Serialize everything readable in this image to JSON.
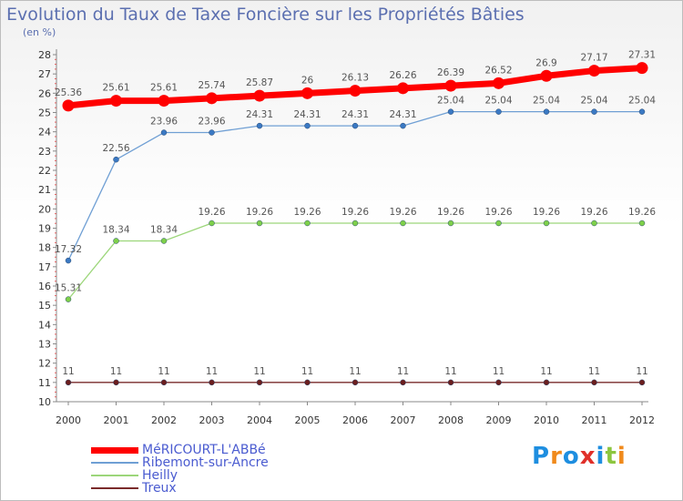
{
  "title": "Evolution du Taux de Taxe Foncière sur les Propriétés Bâties",
  "subtitle": "(en %)",
  "logo": {
    "text": "Proxiti",
    "letters": [
      "P",
      "r",
      "o",
      "x",
      "i",
      "t",
      "i"
    ],
    "colors": [
      "#1e8ee0",
      "#f08a1c",
      "#1e8ee0",
      "#e0302a",
      "#1e8ee0",
      "#8cc63f",
      "#f08a1c"
    ]
  },
  "chart_data": {
    "type": "line",
    "title": "Evolution du Taux de Taxe Foncière sur les Propriétés Bâties",
    "ylabel": "(en %)",
    "xlabel": "",
    "ylim": [
      10,
      28
    ],
    "yticks": [
      "10",
      "11",
      "12",
      "13",
      "14",
      "15",
      "16",
      "17",
      "18",
      "19",
      "20",
      "21",
      "22",
      "23",
      "24",
      "25",
      "26",
      "27",
      "28"
    ],
    "x": [
      "2000",
      "2001",
      "2002",
      "2003",
      "2004",
      "2005",
      "2006",
      "2007",
      "2008",
      "2009",
      "2010",
      "2011",
      "2012"
    ],
    "grid": false,
    "legend": "bottom-left",
    "series": [
      {
        "name": "MéRICOURT-L'ABBé",
        "color": "#ff0000",
        "width": 7,
        "values": [
          25.36,
          25.61,
          25.61,
          25.74,
          25.87,
          26,
          26.13,
          26.26,
          26.39,
          26.52,
          26.9,
          27.17,
          27.31
        ],
        "labels": [
          "25.36",
          "25.61",
          "25.61",
          "25.74",
          "25.87",
          "26",
          "26.13",
          "26.26",
          "26.39",
          "26.52",
          "26.9",
          "27.17",
          "27.31"
        ]
      },
      {
        "name": "Ribemont-sur-Ancre",
        "color": "#6f9fd4",
        "point": "#3b79c3",
        "width": 1.3,
        "values": [
          17.32,
          22.56,
          23.96,
          23.96,
          24.31,
          24.31,
          24.31,
          24.31,
          25.04,
          25.04,
          25.04,
          25.04,
          25.04
        ],
        "labels": [
          "17.32",
          "22.56",
          "23.96",
          "23.96",
          "24.31",
          "24.31",
          "24.31",
          "24.31",
          "25.04",
          "25.04",
          "25.04",
          "25.04",
          "25.04"
        ]
      },
      {
        "name": "Heilly",
        "color": "#9cd67a",
        "point": "#7ed04a",
        "width": 1.3,
        "values": [
          15.31,
          18.34,
          18.34,
          19.26,
          19.26,
          19.26,
          19.26,
          19.26,
          19.26,
          19.26,
          19.26,
          19.26,
          19.26
        ],
        "labels": [
          "15.31",
          "18.34",
          "18.34",
          "19.26",
          "19.26",
          "19.26",
          "19.26",
          "19.26",
          "19.26",
          "19.26",
          "19.26",
          "19.26",
          "19.26"
        ]
      },
      {
        "name": "Treux",
        "color": "#7a2b2b",
        "point": "#6b1e1e",
        "width": 1.3,
        "values": [
          11,
          11,
          11,
          11,
          11,
          11,
          11,
          11,
          11,
          11,
          11,
          11,
          11
        ],
        "labels": [
          "11",
          "11",
          "11",
          "11",
          "11",
          "11",
          "11",
          "11",
          "11",
          "11",
          "11",
          "11",
          "11"
        ]
      }
    ]
  }
}
